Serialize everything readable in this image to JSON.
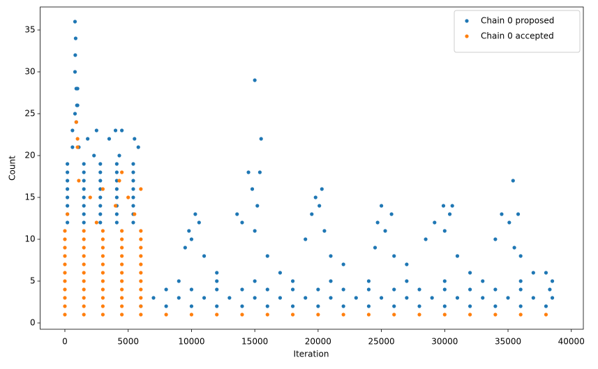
{
  "chart_data": {
    "type": "scatter",
    "xlabel": "Iteration",
    "ylabel": "Count",
    "xlim": [
      -1950,
      40950
    ],
    "ylim": [
      -0.75,
      37.75
    ],
    "xticks": [
      0,
      5000,
      10000,
      15000,
      20000,
      25000,
      30000,
      35000,
      40000
    ],
    "yticks": [
      0,
      5,
      10,
      15,
      20,
      25,
      30,
      35
    ],
    "grid": false,
    "legend": "upper right",
    "series": [
      {
        "name": "Chain 0 proposed",
        "color": "#1f77b4",
        "x": [
          800,
          850,
          820,
          800,
          900,
          1000,
          950,
          1000,
          800,
          900,
          600,
          2500,
          4000,
          4500,
          1800,
          3500,
          5500,
          600,
          1100,
          5800,
          4300,
          2300,
          200,
          1500,
          2800,
          4100,
          5400,
          200,
          1500,
          2800,
          4100,
          5400,
          200,
          1500,
          2800,
          4100,
          5400,
          200,
          1500,
          2800,
          4100,
          5400,
          200,
          1500,
          2800,
          4100,
          5400,
          200,
          1500,
          2800,
          4100,
          5400,
          200,
          1500,
          2800,
          4100,
          5400,
          200,
          1500,
          2800,
          4100,
          5400,
          6000,
          8000,
          10000,
          12000,
          14000,
          16000,
          18000,
          20000,
          22000,
          24000,
          26000,
          28000,
          30000,
          32000,
          34000,
          36000,
          38000,
          7000,
          9000,
          11000,
          13000,
          15000,
          17000,
          19000,
          21000,
          23000,
          25000,
          27000,
          29000,
          31000,
          33000,
          35000,
          37000,
          8000,
          10000,
          12000,
          14000,
          16000,
          18000,
          20000,
          22000,
          24000,
          26000,
          28000,
          30000,
          32000,
          34000,
          36000,
          9000,
          12000,
          15000,
          18000,
          21000,
          24000,
          27000,
          30000,
          33000,
          36000,
          12000,
          17000,
          22000,
          27000,
          32000,
          37000,
          11000,
          16000,
          21000,
          26000,
          31000,
          36000,
          10300,
          10600,
          9800,
          10000,
          9500,
          15000,
          15500,
          14500,
          15400,
          14800,
          15200,
          13600,
          14000,
          15000,
          19800,
          20300,
          20100,
          19500,
          20500,
          19000,
          25000,
          25800,
          24700,
          25300,
          24500,
          29900,
          30600,
          30400,
          29200,
          30000,
          28500,
          35400,
          34500,
          35800,
          35100,
          34000,
          35500,
          38000,
          38500,
          38300,
          38500
        ],
        "y": [
          36,
          34,
          32,
          30,
          28,
          28,
          26,
          26,
          25,
          24,
          23,
          23,
          23,
          23,
          22,
          22,
          22,
          21,
          21,
          21,
          20,
          20,
          12,
          12,
          12,
          12,
          12,
          13,
          13,
          13,
          13,
          13,
          14,
          14,
          14,
          14,
          14,
          15,
          15,
          15,
          15,
          15,
          16,
          16,
          16,
          16,
          16,
          17,
          17,
          17,
          17,
          17,
          18,
          18,
          18,
          18,
          18,
          19,
          19,
          19,
          19,
          19,
          2,
          2,
          2,
          2,
          2,
          2,
          2,
          2,
          2,
          2,
          2,
          2,
          2,
          2,
          2,
          2,
          2,
          3,
          3,
          3,
          3,
          3,
          3,
          3,
          3,
          3,
          3,
          3,
          3,
          3,
          3,
          3,
          3,
          4,
          4,
          4,
          4,
          4,
          4,
          4,
          4,
          4,
          4,
          4,
          4,
          4,
          4,
          4,
          5,
          5,
          5,
          5,
          5,
          5,
          5,
          5,
          5,
          5,
          6,
          6,
          7,
          7,
          6,
          6,
          8,
          8,
          8,
          8,
          8,
          8,
          13,
          12,
          11,
          10,
          9,
          29,
          22,
          18,
          18,
          16,
          14,
          13,
          12,
          11,
          15,
          16,
          14,
          13,
          11,
          10,
          14,
          13,
          12,
          11,
          9,
          14,
          14,
          13,
          12,
          11,
          10,
          17,
          13,
          13,
          12,
          10,
          9,
          6,
          5,
          4,
          3
        ]
      },
      {
        "name": "Chain 0 accepted",
        "color": "#ff7f0e",
        "x": [
          0,
          1500,
          3000,
          4500,
          6000,
          0,
          1500,
          3000,
          4500,
          6000,
          0,
          1500,
          3000,
          4500,
          6000,
          0,
          1500,
          3000,
          4500,
          6000,
          0,
          1500,
          3000,
          4500,
          6000,
          0,
          1500,
          3000,
          4500,
          6000,
          0,
          1500,
          3000,
          4500,
          6000,
          0,
          1500,
          3000,
          4500,
          6000,
          0,
          1500,
          3000,
          4500,
          6000,
          0,
          1500,
          3000,
          4500,
          6000,
          0,
          1500,
          3000,
          4500,
          6000,
          900,
          1000,
          1000,
          1100,
          4500,
          4300,
          6000,
          3000,
          2000,
          4000,
          5000,
          200,
          2500,
          5500,
          8000,
          10000,
          12000,
          14000,
          16000,
          18000,
          20000,
          22000,
          24000,
          26000,
          28000,
          30000,
          32000,
          34000,
          36000,
          38000
        ],
        "y": [
          1,
          1,
          1,
          1,
          1,
          2,
          2,
          2,
          2,
          2,
          3,
          3,
          3,
          3,
          3,
          4,
          4,
          4,
          4,
          4,
          5,
          5,
          5,
          5,
          5,
          6,
          6,
          6,
          6,
          6,
          7,
          7,
          7,
          7,
          7,
          8,
          8,
          8,
          8,
          8,
          9,
          9,
          9,
          9,
          9,
          10,
          10,
          10,
          10,
          10,
          11,
          11,
          11,
          11,
          11,
          24,
          22,
          21,
          17,
          18,
          17,
          16,
          16,
          15,
          14,
          15,
          13,
          12,
          13,
          1,
          1,
          1,
          1,
          1,
          1,
          1,
          1,
          1,
          1,
          1,
          1,
          1,
          1,
          1,
          1
        ]
      }
    ]
  }
}
